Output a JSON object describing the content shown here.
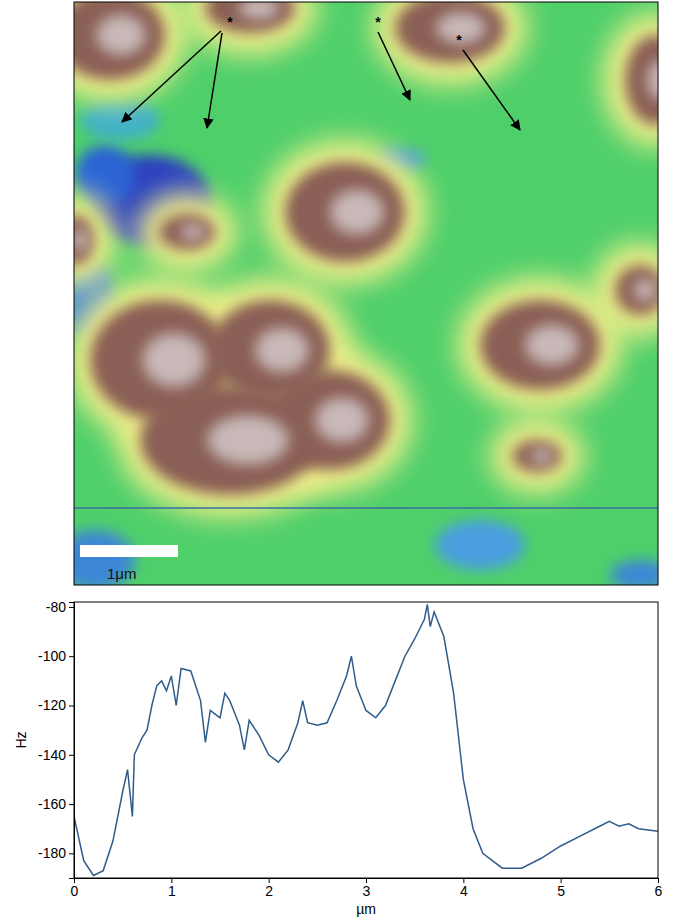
{
  "chart_data": [
    {
      "type": "image",
      "scale_bar_label": "1μm",
      "annotations": [
        "*",
        "*",
        "*"
      ]
    },
    {
      "type": "line",
      "x_label": "µm",
      "y_label": "Hz",
      "color": "#2e5d8c",
      "x": [
        0,
        0.1,
        0.2,
        0.3,
        0.4,
        0.5,
        0.55,
        0.6,
        0.62,
        0.7,
        0.75,
        0.8,
        0.85,
        0.9,
        0.95,
        1.0,
        1.05,
        1.1,
        1.2,
        1.3,
        1.35,
        1.4,
        1.5,
        1.55,
        1.6,
        1.7,
        1.75,
        1.8,
        1.9,
        2.0,
        2.1,
        2.2,
        2.3,
        2.35,
        2.4,
        2.5,
        2.6,
        2.7,
        2.8,
        2.85,
        2.9,
        3.0,
        3.1,
        3.2,
        3.3,
        3.4,
        3.5,
        3.6,
        3.63,
        3.66,
        3.7,
        3.8,
        3.9,
        4.0,
        4.1,
        4.2,
        4.4,
        4.6,
        4.8,
        5.0,
        5.2,
        5.4,
        5.5,
        5.6,
        5.7,
        5.8,
        6.0
      ],
      "values": [
        -165,
        -183,
        -189,
        -187,
        -175,
        -155,
        -146,
        -165,
        -140,
        -133,
        -130,
        -120,
        -112,
        -110,
        -114,
        -108,
        -120,
        -105,
        -106,
        -118,
        -135,
        -122,
        -125,
        -115,
        -118,
        -128,
        -138,
        -126,
        -132,
        -140,
        -143,
        -138,
        -127,
        -118,
        -127,
        -128,
        -127,
        -118,
        -108,
        -100,
        -112,
        -122,
        -125,
        -120,
        -110,
        -100,
        -93,
        -85,
        -79,
        -88,
        -82,
        -92,
        -115,
        -150,
        -170,
        -180,
        -186,
        -186,
        -182,
        -177,
        -173,
        -169,
        -167,
        -169,
        -168,
        -170,
        -171
      ],
      "xlim": [
        0,
        6
      ],
      "ylim": [
        -190,
        -78
      ],
      "xticks": [
        0,
        1,
        2,
        3,
        4,
        5,
        6
      ],
      "yticks": [
        -180,
        -160,
        -140,
        -120,
        -100,
        -80
      ]
    }
  ]
}
